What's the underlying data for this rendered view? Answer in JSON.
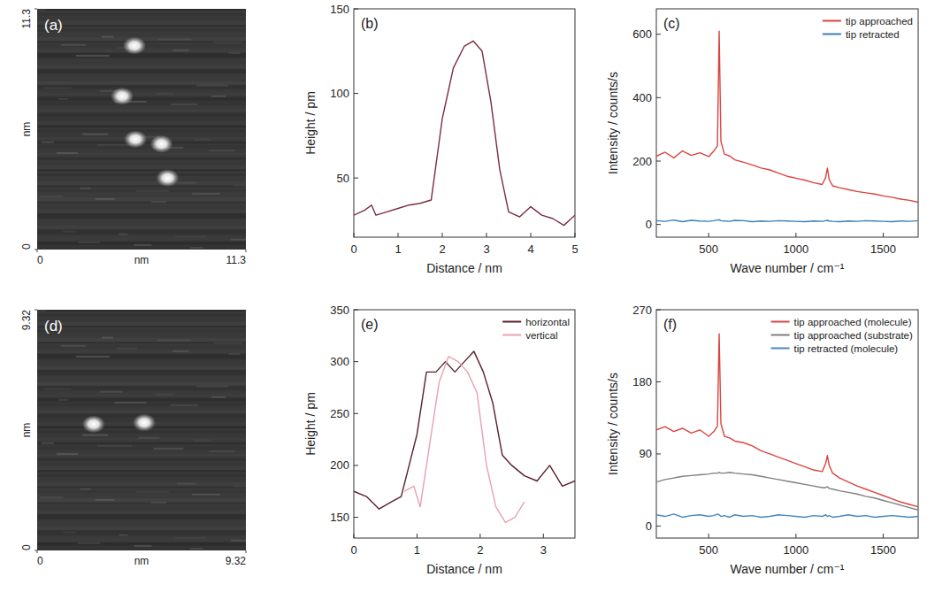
{
  "chart_data": [
    {
      "type": "image",
      "title": "(a)",
      "x_label": "nm",
      "y_label": "nm",
      "xlim": [
        0,
        11.3
      ],
      "ylim": [
        0,
        11.3
      ],
      "xticks": [
        0,
        11.3
      ],
      "yticks": [
        0,
        11.3
      ],
      "spots_x": [
        5.27,
        4.6,
        5.32,
        6.73,
        7.06
      ],
      "spots_y": [
        9.57,
        7.2,
        5.18,
        4.96,
        3.36
      ]
    },
    {
      "type": "line",
      "title": "(b)",
      "x_label": "Distance / nm",
      "y_label": "Height / pm",
      "xlim": [
        0,
        5
      ],
      "ylim": [
        15,
        150
      ],
      "xticks": [
        0,
        1,
        2,
        3,
        4,
        5
      ],
      "yticks": [
        50,
        100,
        150
      ],
      "x": [
        0,
        0.25,
        0.4,
        0.5,
        0.75,
        1,
        1.25,
        1.5,
        1.75,
        2,
        2.25,
        2.5,
        2.7,
        2.9,
        3.1,
        3.3,
        3.5,
        3.75,
        4,
        4.25,
        4.5,
        4.75,
        5
      ],
      "series": [
        {
          "color": "#7a2d3f",
          "values": [
            28,
            31,
            34,
            28,
            30,
            32,
            34,
            35,
            37,
            85,
            115,
            128,
            131,
            125,
            95,
            55,
            30,
            27,
            33,
            28,
            26,
            22,
            28
          ]
        }
      ]
    },
    {
      "type": "line",
      "title": "(c)",
      "x_label": "Wave number / cm⁻¹",
      "y_label": "Intensity / counts/s",
      "xlim": [
        200,
        1700
      ],
      "ylim": [
        -40,
        680
      ],
      "xticks": [
        500,
        1000,
        1500
      ],
      "yticks": [
        0,
        200,
        400,
        600
      ],
      "legend": "upper right",
      "x": [
        200,
        250,
        300,
        350,
        400,
        450,
        500,
        530,
        550,
        560,
        570,
        590,
        620,
        650,
        700,
        750,
        800,
        850,
        900,
        950,
        1000,
        1050,
        1100,
        1150,
        1170,
        1180,
        1190,
        1210,
        1250,
        1300,
        1350,
        1400,
        1450,
        1500,
        1550,
        1600,
        1650,
        1700
      ],
      "series": [
        {
          "name": "tip approached",
          "color": "#d9443f",
          "values": [
            215,
            228,
            210,
            232,
            218,
            226,
            214,
            232,
            248,
            610,
            262,
            222,
            216,
            204,
            196,
            188,
            178,
            172,
            162,
            152,
            146,
            140,
            132,
            126,
            148,
            178,
            142,
            122,
            116,
            110,
            104,
            100,
            96,
            90,
            86,
            80,
            76,
            70
          ]
        },
        {
          "name": "tip retracted",
          "color": "#3a7fb5",
          "values": [
            12,
            10,
            14,
            9,
            13,
            11,
            10,
            12,
            14,
            15,
            12,
            11,
            10,
            13,
            12,
            9,
            11,
            10,
            12,
            11,
            10,
            9,
            11,
            10,
            12,
            13,
            11,
            10,
            9,
            11,
            10,
            12,
            11,
            10,
            9,
            11,
            10,
            12
          ]
        }
      ]
    },
    {
      "type": "image",
      "title": "(d)",
      "x_label": "nm",
      "y_label": "nm",
      "xlim": [
        0,
        9.32
      ],
      "ylim": [
        0,
        9.32
      ],
      "xticks": [
        0,
        9.32
      ],
      "yticks": [
        0,
        9.32
      ],
      "spots_x": [
        2.52,
        4.78
      ],
      "spots_y": [
        4.89,
        4.95
      ]
    },
    {
      "type": "line",
      "title": "(e)",
      "x_label": "Distance / nm",
      "y_label": "Height / pm",
      "xlim": [
        0,
        3.5
      ],
      "ylim": [
        130,
        350
      ],
      "xticks": [
        0,
        1,
        2,
        3
      ],
      "yticks": [
        150,
        200,
        250,
        300,
        350
      ],
      "legend": "upper right",
      "series": [
        {
          "name": "horizontal",
          "color": "#5a1f2c",
          "x": [
            0,
            0.2,
            0.4,
            0.6,
            0.75,
            1,
            1.15,
            1.3,
            1.45,
            1.6,
            1.75,
            1.9,
            2.05,
            2.2,
            2.35,
            2.5,
            2.7,
            2.9,
            3.1,
            3.3,
            3.5
          ],
          "values": [
            175,
            170,
            158,
            165,
            170,
            230,
            290,
            290,
            300,
            290,
            300,
            310,
            290,
            260,
            210,
            200,
            190,
            185,
            200,
            180,
            185
          ]
        },
        {
          "name": "vertical",
          "color": "#e8a0b0",
          "x": [
            0.8,
            0.95,
            1.05,
            1.2,
            1.35,
            1.5,
            1.65,
            1.8,
            1.95,
            2.1,
            2.25,
            2.4,
            2.55,
            2.7
          ],
          "values": [
            175,
            180,
            160,
            220,
            280,
            305,
            300,
            290,
            270,
            200,
            160,
            145,
            150,
            165
          ]
        }
      ]
    },
    {
      "type": "line",
      "title": "(f)",
      "x_label": "Wave number / cm⁻¹",
      "y_label": "Intensity / counts/s",
      "xlim": [
        200,
        1700
      ],
      "ylim": [
        -15,
        270
      ],
      "xticks": [
        500,
        1000,
        1500
      ],
      "yticks": [
        0,
        90,
        180,
        270
      ],
      "legend": "upper right",
      "x": [
        200,
        250,
        300,
        350,
        400,
        450,
        500,
        530,
        550,
        560,
        570,
        590,
        620,
        650,
        700,
        750,
        800,
        850,
        900,
        950,
        1000,
        1050,
        1100,
        1150,
        1170,
        1180,
        1190,
        1210,
        1250,
        1300,
        1350,
        1400,
        1450,
        1500,
        1550,
        1600,
        1650,
        1700
      ],
      "series": [
        {
          "name": "tip approached (molecule)",
          "color": "#d9443f",
          "values": [
            120,
            124,
            118,
            122,
            116,
            120,
            112,
            118,
            125,
            240,
            128,
            112,
            110,
            106,
            104,
            100,
            94,
            90,
            86,
            82,
            78,
            74,
            70,
            68,
            78,
            88,
            76,
            66,
            60,
            55,
            50,
            46,
            42,
            38,
            34,
            30,
            27,
            24
          ]
        },
        {
          "name": "tip approached (substrate)",
          "color": "#7f7f7f",
          "values": [
            55,
            58,
            60,
            62,
            63,
            64,
            65,
            66,
            66,
            67,
            66,
            66,
            67,
            66,
            65,
            64,
            62,
            60,
            58,
            56,
            54,
            52,
            50,
            48,
            48,
            49,
            47,
            46,
            44,
            42,
            40,
            37,
            35,
            32,
            29,
            26,
            23,
            20
          ]
        },
        {
          "name": "tip retracted (molecule)",
          "color": "#4a86c0",
          "values": [
            14,
            12,
            15,
            11,
            13,
            14,
            12,
            13,
            15,
            14,
            12,
            13,
            11,
            14,
            12,
            13,
            11,
            12,
            14,
            13,
            12,
            11,
            13,
            12,
            14,
            12,
            13,
            11,
            12,
            14,
            12,
            13,
            11,
            12,
            13,
            12,
            11,
            12
          ]
        }
      ]
    }
  ]
}
